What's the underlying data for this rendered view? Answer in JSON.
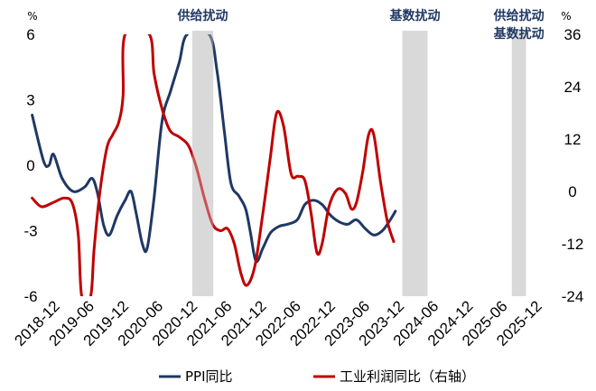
{
  "chart_data": {
    "type": "line",
    "left_axis": {
      "unit": "%",
      "ylim": [
        -6,
        6
      ],
      "ticks": [
        6,
        3,
        0,
        -3,
        -6
      ]
    },
    "right_axis": {
      "unit": "%",
      "ylim": [
        -24,
        36
      ],
      "ticks": [
        36,
        24,
        12,
        0,
        -12,
        -24
      ]
    },
    "x_tick_labels": [
      "2018-12",
      "2019-06",
      "2019-12",
      "2020-06",
      "2020-12",
      "2021-06",
      "2021-12",
      "2022-06",
      "2022-12",
      "2023-06",
      "2023-12",
      "2024-06",
      "2024-12",
      "2025-06",
      "2025-12"
    ],
    "shaded_periods": [
      {
        "label_lines": [
          "供给扰动"
        ],
        "start": 3.93,
        "end": 4.54
      },
      {
        "label_lines": [
          "基数扰动"
        ],
        "start": 10.03,
        "end": 10.76
      },
      {
        "label_lines": [
          "供给扰动",
          "基数扰动"
        ],
        "start": 13.21,
        "end": 13.62
      }
    ],
    "series": [
      {
        "name": "PPI同比",
        "axis": "left",
        "color": "#1F3864",
        "points": [
          [
            -0.72,
            2.3
          ],
          [
            -0.39,
            0.2
          ],
          [
            -0.23,
            0.0
          ],
          [
            -0.1,
            0.5
          ],
          [
            0.15,
            -0.6
          ],
          [
            0.47,
            -1.2
          ],
          [
            0.8,
            -1.0
          ],
          [
            1.02,
            -0.6
          ],
          [
            1.18,
            -1.3
          ],
          [
            1.35,
            -2.7
          ],
          [
            1.52,
            -3.2
          ],
          [
            1.75,
            -2.3
          ],
          [
            1.98,
            -1.6
          ],
          [
            2.15,
            -1.2
          ],
          [
            2.3,
            -2.2
          ],
          [
            2.48,
            -3.6
          ],
          [
            2.62,
            -3.8
          ],
          [
            2.82,
            -1.5
          ],
          [
            3.05,
            2.0
          ],
          [
            3.3,
            3.4
          ],
          [
            3.55,
            4.7
          ],
          [
            3.78,
            6.0
          ],
          [
            4.42,
            6.0
          ],
          [
            4.65,
            4.3
          ],
          [
            4.85,
            1.7
          ],
          [
            5.05,
            -0.8
          ],
          [
            5.28,
            -1.4
          ],
          [
            5.48,
            -2.0
          ],
          [
            5.62,
            -3.1
          ],
          [
            5.78,
            -4.4
          ],
          [
            5.98,
            -3.8
          ],
          [
            6.2,
            -3.1
          ],
          [
            6.45,
            -2.8
          ],
          [
            6.7,
            -2.7
          ],
          [
            6.98,
            -2.5
          ],
          [
            7.2,
            -1.8
          ],
          [
            7.45,
            -1.6
          ],
          [
            7.7,
            -1.8
          ],
          [
            7.95,
            -2.3
          ],
          [
            8.2,
            -2.6
          ],
          [
            8.45,
            -2.7
          ],
          [
            8.7,
            -2.5
          ],
          [
            8.95,
            -2.9
          ],
          [
            9.2,
            -3.2
          ],
          [
            9.45,
            -3.0
          ],
          [
            9.68,
            -2.5
          ],
          [
            9.83,
            -2.1
          ]
        ]
      },
      {
        "name": "工业利润同比（右轴）",
        "axis": "right",
        "color": "#C00000",
        "points": [
          [
            -0.72,
            -1.5
          ],
          [
            -0.45,
            -3.5
          ],
          [
            -0.1,
            -2.5
          ],
          [
            0.22,
            -1.5
          ],
          [
            0.45,
            -2.8
          ],
          [
            0.62,
            -10.0
          ],
          [
            0.72,
            -24.0
          ],
          [
            0.98,
            -24.0
          ],
          [
            1.08,
            -13.0
          ],
          [
            1.25,
            0.0
          ],
          [
            1.45,
            10.0
          ],
          [
            1.62,
            13.0
          ],
          [
            1.8,
            16.0
          ],
          [
            1.92,
            22.0
          ],
          [
            1.98,
            36.0
          ],
          [
            2.68,
            36.0
          ],
          [
            2.82,
            27.0
          ],
          [
            3.05,
            19.0
          ],
          [
            3.28,
            14.0
          ],
          [
            3.55,
            12.5
          ],
          [
            3.82,
            10.5
          ],
          [
            4.05,
            5.5
          ],
          [
            4.28,
            -1.5
          ],
          [
            4.52,
            -7.5
          ],
          [
            4.75,
            -9.0
          ],
          [
            4.95,
            -8.5
          ],
          [
            5.15,
            -12.0
          ],
          [
            5.35,
            -19.0
          ],
          [
            5.52,
            -21.5
          ],
          [
            5.75,
            -17.0
          ],
          [
            5.98,
            -5.0
          ],
          [
            6.2,
            8.0
          ],
          [
            6.38,
            18.0
          ],
          [
            6.58,
            15.0
          ],
          [
            6.8,
            4.0
          ],
          [
            7.0,
            3.5
          ],
          [
            7.2,
            2.5
          ],
          [
            7.38,
            -5.0
          ],
          [
            7.55,
            -14.0
          ],
          [
            7.7,
            -12.0
          ],
          [
            7.9,
            -3.5
          ],
          [
            8.15,
            0.5
          ],
          [
            8.38,
            -0.5
          ],
          [
            8.55,
            -4.0
          ],
          [
            8.7,
            -2.5
          ],
          [
            8.88,
            4.5
          ],
          [
            9.05,
            13.0
          ],
          [
            9.2,
            13.0
          ],
          [
            9.4,
            2.0
          ],
          [
            9.6,
            -7.0
          ],
          [
            9.78,
            -11.5
          ]
        ]
      }
    ]
  },
  "legend": [
    {
      "label": "PPI同比",
      "color": "#1F3864"
    },
    {
      "label": "工业利润同比（右轴）",
      "color": "#C00000"
    }
  ]
}
